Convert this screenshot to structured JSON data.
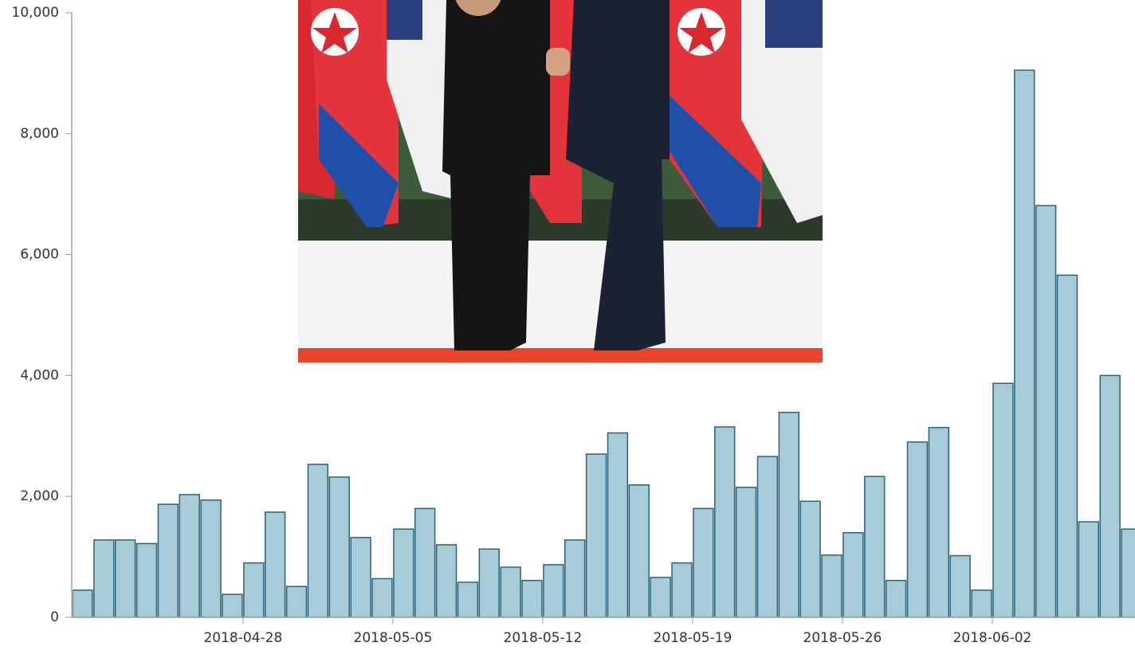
{
  "chart_data": {
    "type": "bar",
    "categories": [
      null,
      null,
      null,
      null,
      null,
      null,
      null,
      null,
      "2018-04-28",
      null,
      null,
      null,
      null,
      null,
      null,
      "2018-05-05",
      null,
      null,
      null,
      null,
      null,
      null,
      "2018-05-12",
      null,
      null,
      null,
      null,
      null,
      null,
      "2018-05-19",
      null,
      null,
      null,
      null,
      null,
      null,
      "2018-05-26",
      null,
      null,
      null,
      null,
      null,
      null,
      "2018-06-02",
      null,
      null,
      null,
      null,
      null,
      null
    ],
    "values": [
      450,
      1280,
      1280,
      1220,
      1870,
      2030,
      1940,
      380,
      900,
      1740,
      510,
      2530,
      2320,
      1320,
      640,
      1460,
      1800,
      1200,
      580,
      1130,
      830,
      610,
      870,
      1280,
      2700,
      3050,
      2190,
      660,
      900,
      1800,
      3150,
      2150,
      2660,
      3390,
      1920,
      1030,
      1400,
      2330,
      610,
      2900,
      3140,
      1020,
      450,
      3870,
      9050,
      6810,
      5660,
      1580,
      4000,
      1460
    ],
    "color": "#a8ccd7",
    "ylim": [
      0,
      10000
    ],
    "yticks": [
      0,
      {
        "value": 2000,
        "label": "2,000"
      },
      {
        "value": 4000,
        "label": "4,000"
      },
      {
        "value": 6000,
        "label": "6,000"
      },
      {
        "value": 8000,
        "label": "8,000"
      },
      {
        "value": 10000,
        "label": "10,000"
      }
    ],
    "grid": false
  }
}
